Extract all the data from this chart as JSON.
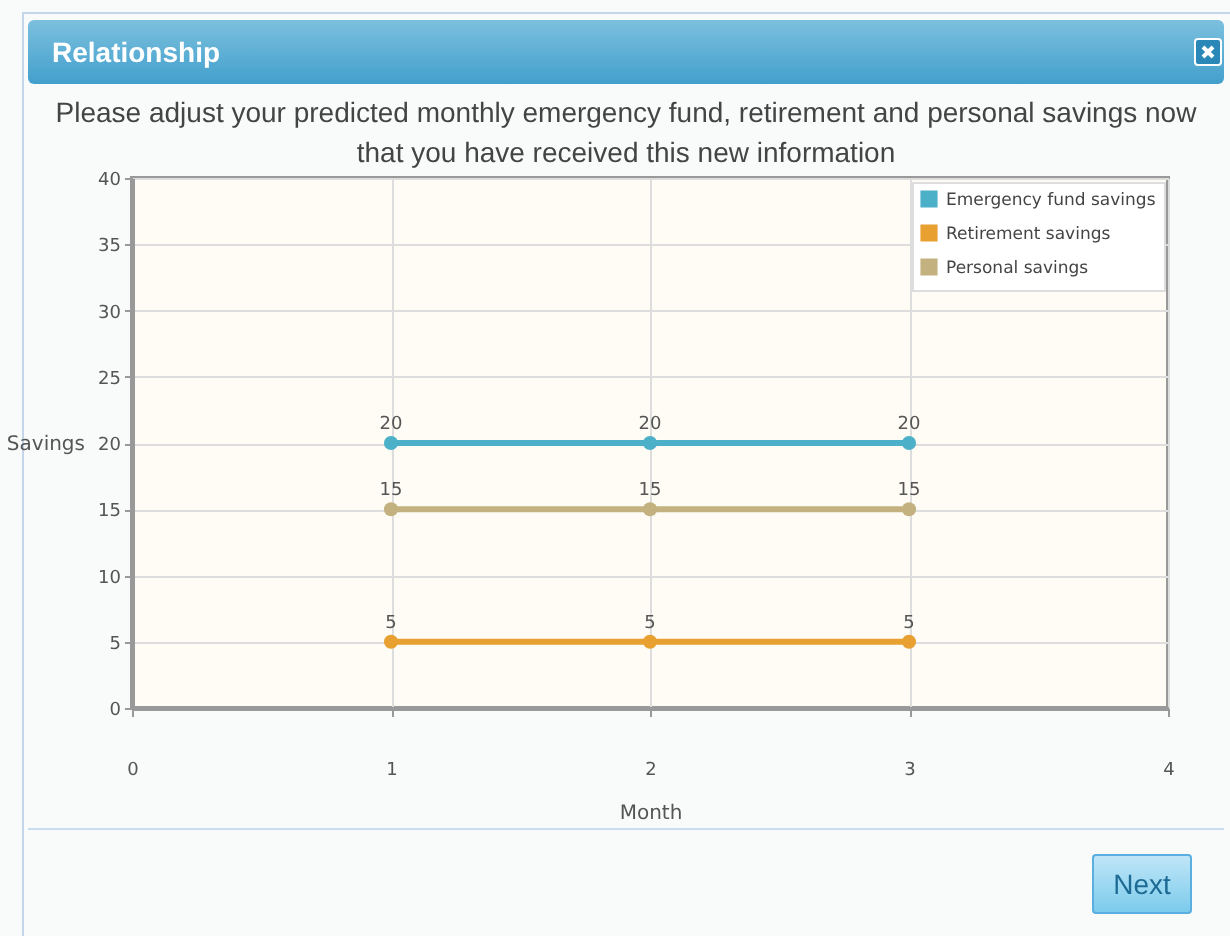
{
  "chart_data": {
    "type": "line",
    "title": "Relationship",
    "subtitle": "Please adjust your predicted monthly emergency fund, retirement and personal savings now that you have received this new information",
    "xlabel": "Month",
    "ylabel": "Savings",
    "x": [
      1,
      2,
      3
    ],
    "series": [
      {
        "name": "Emergency fund savings",
        "color": "#4bb0c8",
        "values": [
          20,
          20,
          20
        ]
      },
      {
        "name": "Retirement savings",
        "color": "#e8a030",
        "values": [
          5,
          5,
          5
        ]
      },
      {
        "name": "Personal savings",
        "color": "#c3b27f",
        "values": [
          15,
          15,
          15
        ]
      }
    ],
    "xlim": [
      0,
      4
    ],
    "xticks": [
      0,
      1,
      2,
      3,
      4
    ],
    "ylim": [
      0,
      40
    ],
    "yticks": [
      0,
      5,
      10,
      15,
      20,
      25,
      30,
      35,
      40
    ],
    "grid": true,
    "legend": "top right",
    "marker": "circle",
    "line_style": "solid",
    "data_labels": true,
    "annotations": [
      "Next"
    ]
  }
}
